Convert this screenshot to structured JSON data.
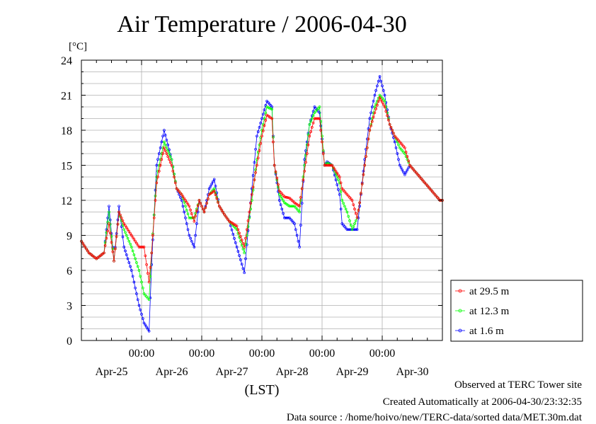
{
  "chart_data": {
    "type": "line",
    "title": "Air Temperature / 2006-04-30",
    "unit": "[°C]",
    "xlabel": "(LST)",
    "ylim": [
      0,
      24
    ],
    "y_ticks": [
      0,
      3,
      6,
      9,
      12,
      15,
      18,
      21,
      24
    ],
    "x_range_hours": [
      0,
      144
    ],
    "x_time_ticks": [
      {
        "hour": 24,
        "label": "00:00"
      },
      {
        "hour": 48,
        "label": "00:00"
      },
      {
        "hour": 72,
        "label": "00:00"
      },
      {
        "hour": 96,
        "label": "00:00"
      },
      {
        "hour": 120,
        "label": "00:00"
      }
    ],
    "x_date_ticks": [
      {
        "hour": 12,
        "label": "Apr-25"
      },
      {
        "hour": 36,
        "label": "Apr-26"
      },
      {
        "hour": 60,
        "label": "Apr-27"
      },
      {
        "hour": 84,
        "label": "Apr-28"
      },
      {
        "hour": 108,
        "label": "Apr-29"
      },
      {
        "hour": 132,
        "label": "Apr-30"
      }
    ],
    "grid": true,
    "legend_position": "right",
    "series": [
      {
        "name": "at 29.5 m",
        "color": "#ff0000",
        "x": [
          0,
          3,
          6,
          9,
          11,
          13,
          15,
          17,
          20,
          23,
          25,
          27,
          28,
          30,
          33,
          36,
          38,
          40,
          43,
          45,
          47,
          49,
          51,
          53,
          55,
          57,
          59,
          62,
          65,
          68,
          70,
          72,
          74,
          76,
          77,
          79,
          81,
          83,
          85,
          87,
          89,
          91,
          93,
          95,
          97,
          98,
          100,
          103,
          104,
          106,
          108,
          110,
          111,
          113,
          115,
          117,
          119,
          121,
          123,
          125,
          127,
          129,
          131,
          133,
          135,
          137,
          139,
          141,
          143,
          144
        ],
        "y": [
          8.5,
          7.5,
          7.0,
          7.5,
          10.0,
          6.8,
          11.0,
          10.0,
          9.0,
          8.0,
          8.0,
          5.0,
          7.5,
          13.5,
          16.5,
          15.0,
          13.0,
          12.5,
          11.5,
          10.2,
          12.0,
          11.0,
          12.5,
          12.8,
          11.5,
          10.8,
          10.2,
          9.8,
          8.0,
          12.5,
          15.0,
          17.5,
          19.3,
          19.0,
          15.0,
          12.8,
          12.3,
          12.2,
          11.8,
          11.5,
          14.5,
          17.5,
          19.0,
          19.0,
          15.0,
          15.0,
          15.0,
          14.0,
          13.0,
          12.5,
          12.0,
          10.5,
          11.8,
          15.0,
          18.0,
          19.5,
          20.8,
          20.0,
          18.5,
          17.5,
          17.0,
          16.5,
          15.0,
          14.5,
          14.0,
          13.5,
          13.0,
          12.5,
          12.0,
          12.0
        ]
      },
      {
        "name": "at 12.3 m",
        "color": "#00ff00",
        "x": [
          0,
          3,
          6,
          9,
          11,
          13,
          15,
          17,
          20,
          23,
          25,
          27,
          28,
          30,
          33,
          36,
          38,
          40,
          43,
          45,
          47,
          49,
          51,
          53,
          55,
          57,
          59,
          62,
          65,
          68,
          70,
          72,
          74,
          76,
          77,
          79,
          81,
          83,
          85,
          87,
          89,
          91,
          93,
          95,
          97,
          98,
          100,
          103,
          104,
          106,
          108,
          110,
          111,
          113,
          115,
          117,
          119,
          121,
          123,
          125,
          127,
          129,
          131,
          133,
          135,
          137,
          139,
          141,
          143,
          144
        ],
        "y": [
          8.5,
          7.5,
          7.0,
          7.5,
          11.0,
          6.8,
          11.0,
          9.5,
          8.0,
          6.0,
          4.0,
          3.5,
          7.5,
          14.0,
          17.0,
          15.5,
          13.0,
          12.5,
          10.5,
          10.5,
          12.0,
          11.0,
          12.5,
          13.0,
          11.5,
          10.8,
          10.2,
          9.5,
          7.5,
          12.0,
          15.5,
          18.0,
          20.0,
          19.8,
          15.0,
          12.5,
          11.8,
          11.5,
          11.5,
          11.0,
          15.0,
          18.5,
          19.5,
          20.0,
          15.0,
          15.2,
          15.0,
          13.5,
          12.0,
          11.0,
          9.5,
          10.5,
          11.8,
          15.0,
          18.0,
          20.0,
          21.0,
          20.5,
          18.5,
          17.5,
          16.5,
          16.0,
          15.0,
          14.5,
          14.0,
          13.5,
          13.0,
          12.5,
          12.0,
          12.0
        ]
      },
      {
        "name": "at 1.6 m",
        "color": "#0000ff",
        "x": [
          0,
          3,
          6,
          9,
          11,
          13,
          15,
          17,
          20,
          23,
          25,
          27,
          28,
          30,
          33,
          36,
          38,
          40,
          43,
          45,
          47,
          49,
          51,
          53,
          55,
          57,
          59,
          62,
          65,
          68,
          70,
          72,
          74,
          76,
          77,
          79,
          81,
          83,
          85,
          87,
          89,
          91,
          93,
          95,
          97,
          98,
          100,
          103,
          104,
          106,
          108,
          110,
          111,
          113,
          115,
          117,
          119,
          121,
          123,
          125,
          127,
          129,
          131,
          133,
          135,
          137,
          139,
          141,
          143,
          144
        ],
        "y": [
          8.5,
          7.5,
          7.0,
          7.5,
          11.5,
          6.8,
          11.5,
          8.0,
          6.0,
          3.0,
          1.5,
          0.8,
          6.5,
          15.0,
          18.0,
          15.5,
          13.0,
          12.0,
          9.0,
          8.0,
          12.0,
          11.0,
          13.0,
          13.8,
          11.5,
          10.8,
          10.2,
          8.0,
          5.8,
          13.0,
          17.5,
          19.0,
          20.5,
          20.0,
          15.0,
          12.0,
          10.5,
          10.5,
          10.0,
          8.0,
          15.5,
          18.5,
          20.0,
          19.5,
          15.0,
          15.3,
          15.0,
          12.5,
          10.0,
          9.5,
          9.5,
          9.5,
          11.5,
          15.5,
          19.0,
          21.0,
          22.6,
          21.0,
          18.5,
          17.0,
          15.0,
          14.2,
          15.0,
          14.5,
          14.0,
          13.5,
          13.0,
          12.5,
          12.0,
          12.0
        ]
      }
    ]
  },
  "footer": {
    "line1": "Observed at TERC Tower site",
    "line2": "Created Automatically at 2006-04-30/23:32:35",
    "line3": "Data source : /home/hoivo/new/TERC-data/sorted  data/MET.30m.dat"
  }
}
